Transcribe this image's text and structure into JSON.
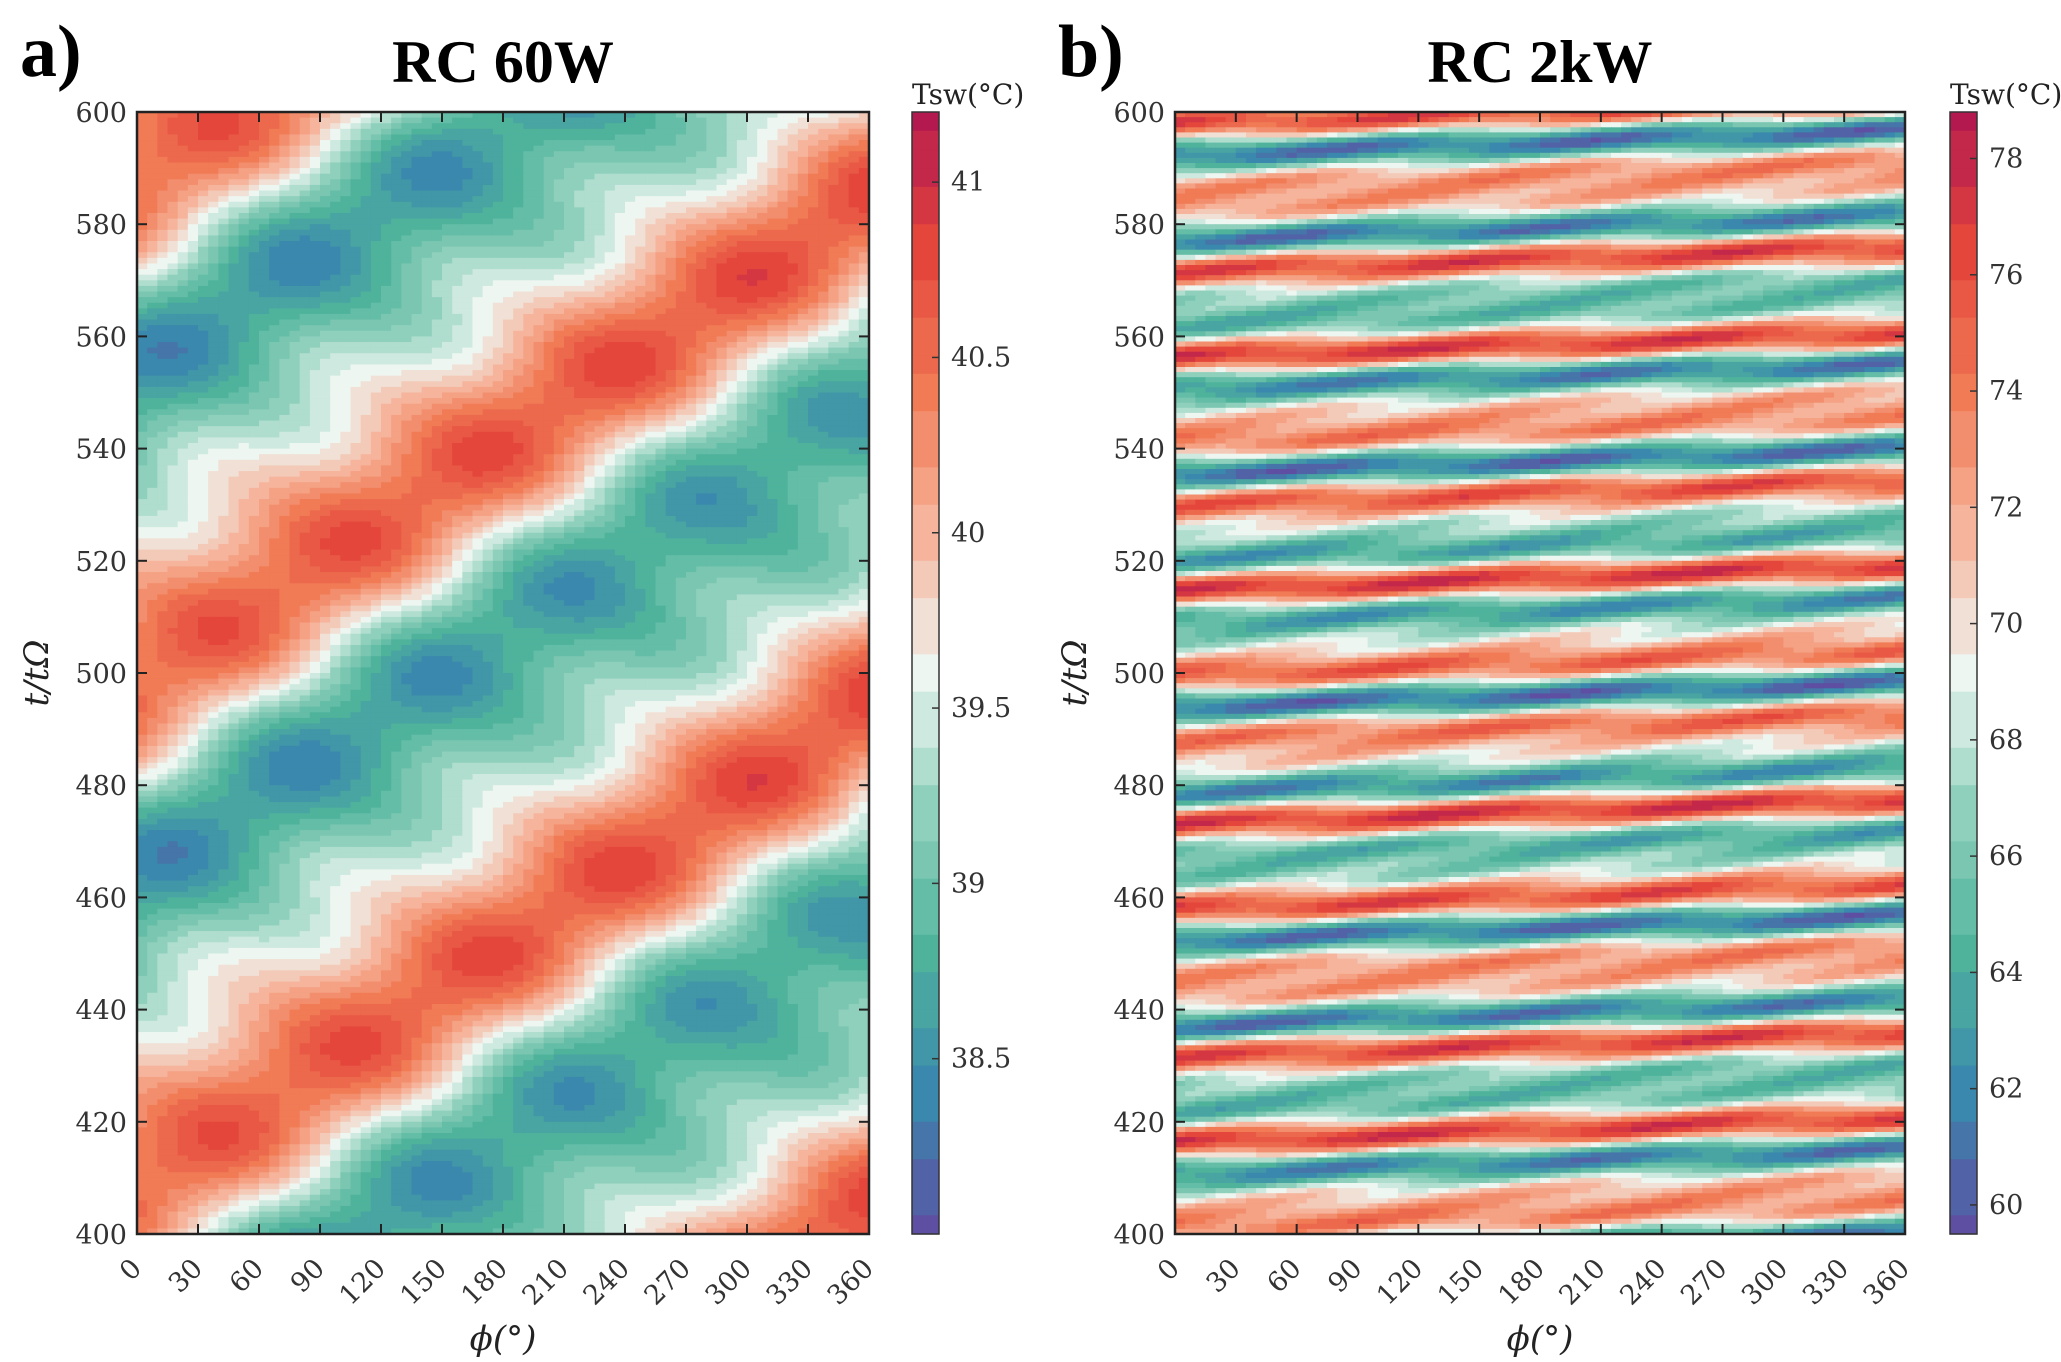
{
  "chart_data": [
    {
      "type": "heatmap",
      "panel_label": "a)",
      "title": "RC 60W",
      "xlabel": "ϕ(°)",
      "ylabel": "t/tΩ",
      "xlim": [
        0,
        360
      ],
      "ylim": [
        400,
        600
      ],
      "xticks": [
        "0",
        "30",
        "60",
        "90",
        "120",
        "150",
        "180",
        "210",
        "240",
        "270",
        "300",
        "330",
        "360"
      ],
      "yticks": [
        "400",
        "420",
        "440",
        "460",
        "480",
        "500",
        "520",
        "540",
        "560",
        "580",
        "600"
      ],
      "colorbar_label": "Tsw(°C)",
      "colorbar_range": [
        38.0,
        41.2
      ],
      "colorbar_ticks": [
        "38.5",
        "39",
        "39.5",
        "40",
        "40.5",
        "41"
      ],
      "field": {
        "description": "diagonal travelling warm/cool stripes",
        "mean": 39.55,
        "amplitude": 1.25,
        "wavenumber_phi": 1,
        "period_t": 90,
        "phase_offset_deg": 0
      }
    },
    {
      "type": "heatmap",
      "panel_label": "b)",
      "title": "RC 2kW",
      "xlabel": "ϕ(°)",
      "ylabel": "t/tΩ",
      "xlim": [
        0,
        360
      ],
      "ylim": [
        400,
        600
      ],
      "xticks": [
        "0",
        "30",
        "60",
        "90",
        "120",
        "150",
        "180",
        "210",
        "240",
        "270",
        "300",
        "330",
        "360"
      ],
      "yticks": [
        "400",
        "420",
        "440",
        "460",
        "480",
        "500",
        "520",
        "540",
        "560",
        "580",
        "600"
      ],
      "colorbar_label": "Tsw(°C)",
      "colorbar_range": [
        59.5,
        78.8
      ],
      "colorbar_ticks": [
        "60",
        "62",
        "64",
        "66",
        "68",
        "70",
        "72",
        "74",
        "76",
        "78"
      ],
      "field": {
        "description": "nearly horizontal narrow stripes",
        "mean": 69.0,
        "amplitude": 8.5,
        "wavenumber_phi": 1,
        "period_t": 14,
        "phase_offset_deg": 0
      }
    }
  ],
  "colormap": [
    "#5e4fa2",
    "#3a88ad",
    "#4fb39c",
    "#8fd0bc",
    "#eef6f1",
    "#f6b49c",
    "#f07b55",
    "#e4463c",
    "#b3184f"
  ]
}
